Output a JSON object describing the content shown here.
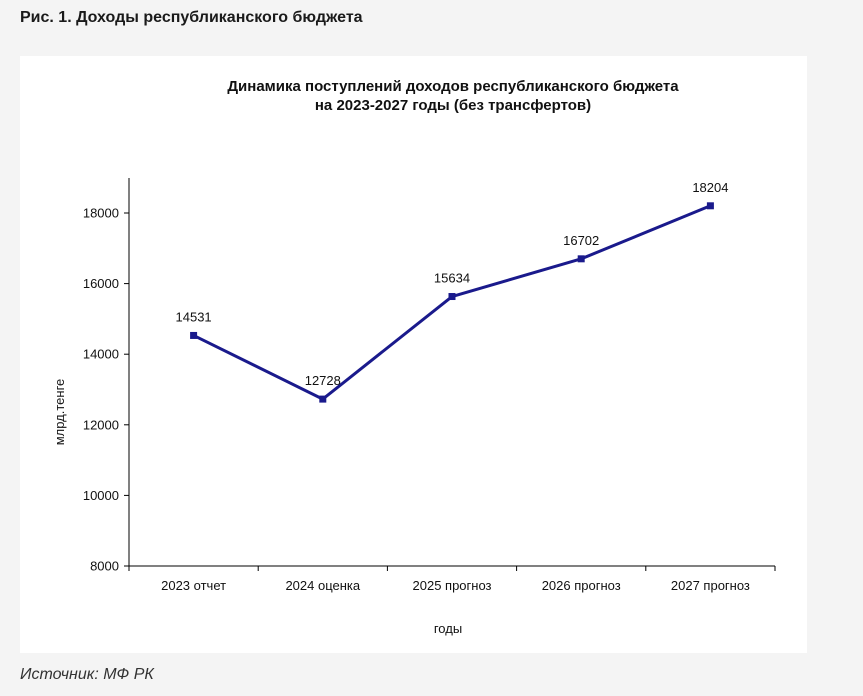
{
  "figure_caption": "Рис. 1. Доходы республиканского бюджета",
  "source_note": "Источник: МФ РК",
  "colors": {
    "line": "#1a1a8c",
    "axis": "#000000",
    "panel": "#ffffff",
    "page": "#f4f4f4"
  },
  "chart_data": {
    "type": "line",
    "title_line1": "Динамика поступлений доходов республиканского бюджета",
    "title_line2": "на 2023-2027 годы (без трансфертов)",
    "xlabel": "годы",
    "ylabel": "млрд.тенге",
    "categories": [
      "2023 отчет",
      "2024 оценка",
      "2025 прогноз",
      "2026 прогноз",
      "2027 прогноз"
    ],
    "series": [
      {
        "values": [
          14531,
          12728,
          15634,
          16702,
          18204
        ]
      }
    ],
    "data_labels": [
      "14531",
      "12728",
      "15634",
      "16702",
      "18204"
    ],
    "ylim": [
      8000,
      19000
    ],
    "yticks": [
      "8000",
      "10000",
      "12000",
      "14000",
      "16000",
      "18000"
    ],
    "ytick_values": [
      8000,
      10000,
      12000,
      14000,
      16000,
      18000
    ],
    "grid": false,
    "legend": false
  }
}
